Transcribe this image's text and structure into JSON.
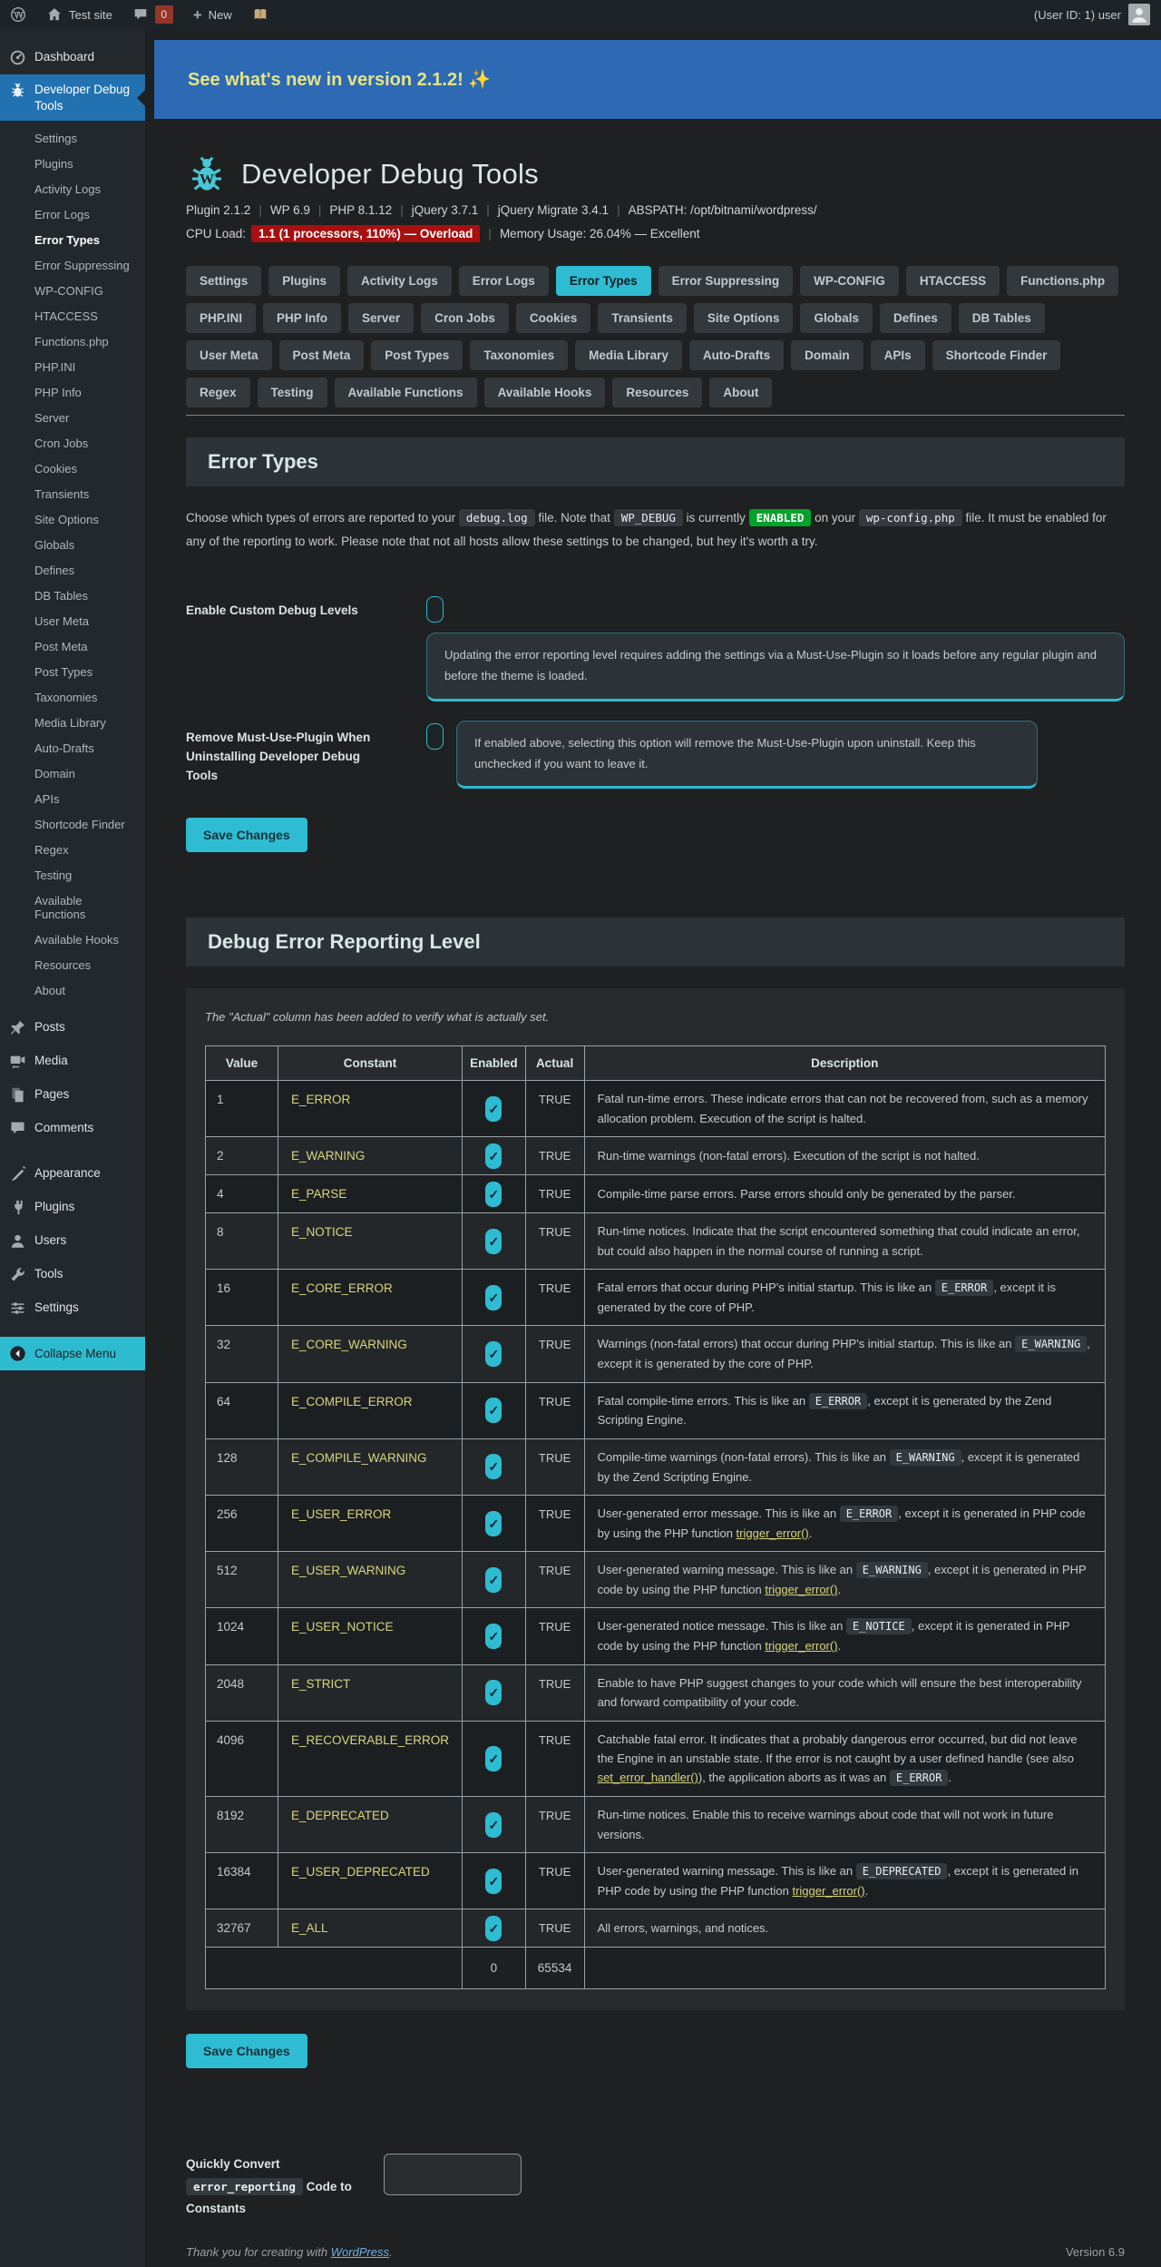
{
  "admin_bar": {
    "site": "Test site",
    "comments_count": "0",
    "new_label": "New",
    "user": "(User ID: 1) user"
  },
  "banner": {
    "text": "See what's new in version 2.1.2! ✨"
  },
  "sidebar": {
    "dashboard": "Dashboard",
    "plugin": "Developer Debug Tools",
    "submenu": [
      "Settings",
      "Plugins",
      "Activity Logs",
      "Error Logs",
      "Error Types",
      "Error Suppressing",
      "WP-CONFIG",
      "HTACCESS",
      "Functions.php",
      "PHP.INI",
      "PHP Info",
      "Server",
      "Cron Jobs",
      "Cookies",
      "Transients",
      "Site Options",
      "Globals",
      "Defines",
      "DB Tables",
      "User Meta",
      "Post Meta",
      "Post Types",
      "Taxonomies",
      "Media Library",
      "Auto-Drafts",
      "Domain",
      "APIs",
      "Shortcode Finder",
      "Regex",
      "Testing",
      "Available Functions",
      "Available Hooks",
      "Resources",
      "About"
    ],
    "submenu_active": "Error Types",
    "menu_group1": [
      {
        "label": "Posts",
        "icon": "pin-icon"
      },
      {
        "label": "Media",
        "icon": "camera-icon"
      },
      {
        "label": "Pages",
        "icon": "pages-icon"
      },
      {
        "label": "Comments",
        "icon": "comment-icon"
      }
    ],
    "menu_group2": [
      {
        "label": "Appearance",
        "icon": "brush-icon"
      },
      {
        "label": "Plugins",
        "icon": "plug-icon"
      },
      {
        "label": "Users",
        "icon": "user-icon"
      },
      {
        "label": "Tools",
        "icon": "wrench-icon"
      },
      {
        "label": "Settings",
        "icon": "sliders-icon"
      }
    ],
    "collapse": "Collapse Menu"
  },
  "header": {
    "title": "Developer Debug Tools",
    "meta": [
      "Plugin 2.1.2",
      "WP 6.9",
      "PHP 8.1.12",
      "jQuery 3.7.1",
      "jQuery Migrate 3.4.1",
      "ABSPATH: /opt/bitnami/wordpress/"
    ],
    "cpu_label": "CPU Load:",
    "cpu_badge": "1.1 (1 processors, 110%) — Overload",
    "memory": "Memory Usage: 26.04% — Excellent"
  },
  "tabs": {
    "items": [
      "Settings",
      "Plugins",
      "Activity Logs",
      "Error Logs",
      "Error Types",
      "Error Suppressing",
      "WP-CONFIG",
      "HTACCESS",
      "Functions.php",
      "PHP.INI",
      "PHP Info",
      "Server",
      "Cron Jobs",
      "Cookies",
      "Transients",
      "Site Options",
      "Globals",
      "Defines",
      "DB Tables",
      "User Meta",
      "Post Meta",
      "Post Types",
      "Taxonomies",
      "Media Library",
      "Auto-Drafts",
      "Domain",
      "APIs",
      "Shortcode Finder",
      "Regex",
      "Testing",
      "Available Functions",
      "Available Hooks",
      "Resources",
      "About"
    ],
    "active": "Error Types",
    "row_breaks": [
      9,
      19,
      28,
      34
    ]
  },
  "error_types": {
    "heading": "Error Types",
    "description": [
      {
        "text": "Choose which types of errors are reported to your "
      },
      {
        "code": "debug.log"
      },
      {
        "text": " file. Note that "
      },
      {
        "code": "WP_DEBUG"
      },
      {
        "text": " is currently "
      },
      {
        "badge": "ENABLED"
      },
      {
        "text": " on your "
      },
      {
        "code": "wp-config.php"
      },
      {
        "text": " file. It must be enabled for any of the reporting to work. Please note that not all hosts allow these settings to be changed, but hey it's worth a try."
      }
    ],
    "field1": {
      "label": "Enable Custom Debug Levels",
      "checked": false,
      "info": "Updating the error reporting level requires adding the settings via a Must-Use-Plugin so it loads before any regular plugin and before the theme is loaded."
    },
    "field2": {
      "label": "Remove Must-Use-Plugin When Uninstalling Developer Debug Tools",
      "checked": false,
      "info": "If enabled above, selecting this option will remove the Must-Use-Plugin upon uninstall. Keep this unchecked if you want to leave it."
    },
    "save_label": "Save Changes"
  },
  "reporting": {
    "heading": "Debug Error Reporting Level",
    "note": "The \"Actual\" column has been added to verify what is actually set.",
    "columns": [
      "Value",
      "Constant",
      "Enabled",
      "Actual",
      "Description"
    ],
    "rows": [
      {
        "value": "1",
        "constant": "E_ERROR",
        "enabled": true,
        "actual": "TRUE",
        "description": [
          {
            "text": "Fatal run-time errors. These indicate errors that can not be recovered from, such as a memory allocation problem. Execution of the script is halted."
          }
        ]
      },
      {
        "value": "2",
        "constant": "E_WARNING",
        "enabled": true,
        "actual": "TRUE",
        "description": [
          {
            "text": "Run-time warnings (non-fatal errors). Execution of the script is not halted."
          }
        ]
      },
      {
        "value": "4",
        "constant": "E_PARSE",
        "enabled": true,
        "actual": "TRUE",
        "description": [
          {
            "text": "Compile-time parse errors. Parse errors should only be generated by the parser."
          }
        ]
      },
      {
        "value": "8",
        "constant": "E_NOTICE",
        "enabled": true,
        "actual": "TRUE",
        "description": [
          {
            "text": "Run-time notices. Indicate that the script encountered something that could indicate an error, but could also happen in the normal course of running a script."
          }
        ]
      },
      {
        "value": "16",
        "constant": "E_CORE_ERROR",
        "enabled": true,
        "actual": "TRUE",
        "description": [
          {
            "text": "Fatal errors that occur during PHP's initial startup. This is like an "
          },
          {
            "code": "E_ERROR"
          },
          {
            "text": ", except it is generated by the core of PHP."
          }
        ]
      },
      {
        "value": "32",
        "constant": "E_CORE_WARNING",
        "enabled": true,
        "actual": "TRUE",
        "description": [
          {
            "text": "Warnings (non-fatal errors) that occur during PHP's initial startup. This is like an "
          },
          {
            "code": "E_WARNING"
          },
          {
            "text": ", except it is generated by the core of PHP."
          }
        ]
      },
      {
        "value": "64",
        "constant": "E_COMPILE_ERROR",
        "enabled": true,
        "actual": "TRUE",
        "description": [
          {
            "text": "Fatal compile-time errors. This is like an "
          },
          {
            "code": "E_ERROR"
          },
          {
            "text": ", except it is generated by the Zend Scripting Engine."
          }
        ]
      },
      {
        "value": "128",
        "constant": "E_COMPILE_WARNING",
        "enabled": true,
        "actual": "TRUE",
        "description": [
          {
            "text": "Compile-time warnings (non-fatal errors). This is like an "
          },
          {
            "code": "E_WARNING"
          },
          {
            "text": ", except it is generated by the Zend Scripting Engine."
          }
        ]
      },
      {
        "value": "256",
        "constant": "E_USER_ERROR",
        "enabled": true,
        "actual": "TRUE",
        "description": [
          {
            "text": "User-generated error message. This is like an "
          },
          {
            "code": "E_ERROR"
          },
          {
            "text": ", except it is generated in PHP code by using the PHP function "
          },
          {
            "link": "trigger_error()"
          },
          {
            "text": "."
          }
        ]
      },
      {
        "value": "512",
        "constant": "E_USER_WARNING",
        "enabled": true,
        "actual": "TRUE",
        "description": [
          {
            "text": "User-generated warning message. This is like an "
          },
          {
            "code": "E_WARNING"
          },
          {
            "text": ", except it is generated in PHP code by using the PHP function "
          },
          {
            "link": "trigger_error()"
          },
          {
            "text": "."
          }
        ]
      },
      {
        "value": "1024",
        "constant": "E_USER_NOTICE",
        "enabled": true,
        "actual": "TRUE",
        "description": [
          {
            "text": "User-generated notice message. This is like an "
          },
          {
            "code": "E_NOTICE"
          },
          {
            "text": ", except it is generated in PHP code by using the PHP function "
          },
          {
            "link": "trigger_error()"
          },
          {
            "text": "."
          }
        ]
      },
      {
        "value": "2048",
        "constant": "E_STRICT",
        "enabled": true,
        "actual": "TRUE",
        "description": [
          {
            "text": "Enable to have PHP suggest changes to your code which will ensure the best interoperability and forward compatibility of your code."
          }
        ]
      },
      {
        "value": "4096",
        "constant": "E_RECOVERABLE_ERROR",
        "enabled": true,
        "actual": "TRUE",
        "description": [
          {
            "text": "Catchable fatal error. It indicates that a probably dangerous error occurred, but did not leave the Engine in an unstable state. If the error is not caught by a user defined handle (see also "
          },
          {
            "link": "set_error_handler()"
          },
          {
            "text": "), the application aborts as it was an "
          },
          {
            "code": "E_ERROR"
          },
          {
            "text": "."
          }
        ]
      },
      {
        "value": "8192",
        "constant": "E_DEPRECATED",
        "enabled": true,
        "actual": "TRUE",
        "description": [
          {
            "text": "Run-time notices. Enable this to receive warnings about code that will not work in future versions."
          }
        ]
      },
      {
        "value": "16384",
        "constant": "E_USER_DEPRECATED",
        "enabled": true,
        "actual": "TRUE",
        "description": [
          {
            "text": "User-generated warning message. This is like an "
          },
          {
            "code": "E_DEPRECATED"
          },
          {
            "text": ", except it is generated in PHP code by using the PHP function "
          },
          {
            "link": "trigger_error()"
          },
          {
            "text": "."
          }
        ]
      },
      {
        "value": "32767",
        "constant": "E_ALL",
        "enabled": true,
        "actual": "TRUE",
        "description": [
          {
            "text": "All errors, warnings, and notices."
          }
        ]
      }
    ],
    "totals": {
      "enabled": "0",
      "actual": "65534"
    },
    "save_label": "Save Changes"
  },
  "convert": {
    "label": [
      {
        "text": "Quickly Convert "
      },
      {
        "code": "error_reporting"
      },
      {
        "text": " Code to Constants"
      }
    ],
    "input_value": ""
  },
  "footer": {
    "thanks": [
      {
        "text": "Thank you for creating with "
      },
      {
        "link_blue": "WordPress"
      },
      {
        "text": "."
      }
    ],
    "version": "Version 6.9"
  }
}
